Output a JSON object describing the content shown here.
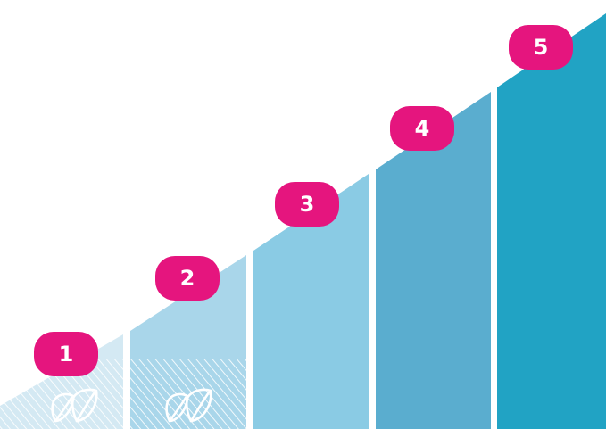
{
  "steps": [
    {
      "label": "1",
      "color": "#d4e9f3",
      "hatched": true,
      "icon": "leaf-icon"
    },
    {
      "label": "2",
      "color": "#a9d6ea",
      "hatched": true,
      "icon": "leaf-icon"
    },
    {
      "label": "3",
      "color": "#8acbe4",
      "hatched": false
    },
    {
      "label": "4",
      "color": "#5aadcf",
      "hatched": false
    },
    {
      "label": "5",
      "color": "#21a3c4",
      "hatched": false
    }
  ],
  "colors": {
    "badge": "#e5157e",
    "background": "#ffffff"
  }
}
